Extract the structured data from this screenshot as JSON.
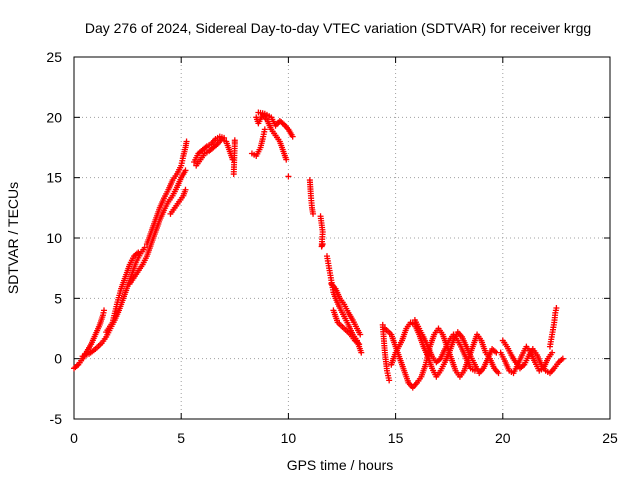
{
  "chart_data": {
    "type": "scatter",
    "title": "Day 276 of 2024, Sidereal Day-to-day VTEC variation (SDTVAR) for receiver krgg",
    "xlabel": "GPS time / hours",
    "ylabel": "SDTVAR / TECUs",
    "xlim": [
      0,
      25
    ],
    "ylim": [
      -5,
      25
    ],
    "xticks": [
      0,
      5,
      10,
      15,
      20,
      25
    ],
    "yticks": [
      -5,
      0,
      5,
      10,
      15,
      20,
      25
    ],
    "grid": true,
    "marker": "+",
    "color": "#ff0000",
    "series": [
      {
        "name": "SDTVAR",
        "segments": [
          [
            [
              0.0,
              -0.8
            ],
            [
              0.2,
              -0.5
            ],
            [
              0.4,
              0.0
            ],
            [
              0.6,
              0.6
            ],
            [
              0.8,
              1.2
            ],
            [
              1.0,
              2.0
            ],
            [
              1.2,
              2.8
            ],
            [
              1.35,
              3.6
            ],
            [
              1.4,
              4.0
            ]
          ],
          [
            [
              0.4,
              0.2
            ],
            [
              0.7,
              0.4
            ],
            [
              1.0,
              0.8
            ],
            [
              1.3,
              1.3
            ],
            [
              1.5,
              1.8
            ],
            [
              1.7,
              2.5
            ],
            [
              1.9,
              3.2
            ],
            [
              2.1,
              4.0
            ],
            [
              2.3,
              5.0
            ],
            [
              2.5,
              6.0
            ],
            [
              2.7,
              7.0
            ],
            [
              2.9,
              8.0
            ],
            [
              3.1,
              8.7
            ],
            [
              3.3,
              9.2
            ]
          ],
          [
            [
              1.5,
              2.2
            ],
            [
              1.8,
              3.0
            ],
            [
              2.0,
              4.5
            ],
            [
              2.2,
              5.8
            ],
            [
              2.4,
              6.8
            ],
            [
              2.6,
              7.8
            ],
            [
              2.8,
              8.5
            ],
            [
              3.0,
              8.8
            ]
          ],
          [
            [
              2.6,
              6.2
            ],
            [
              2.9,
              7.0
            ],
            [
              3.2,
              7.8
            ],
            [
              3.4,
              8.5
            ],
            [
              3.6,
              9.5
            ],
            [
              3.8,
              10.5
            ],
            [
              4.0,
              11.5
            ],
            [
              4.2,
              12.3
            ],
            [
              4.4,
              13.0
            ],
            [
              4.6,
              13.5
            ],
            [
              4.8,
              14.2
            ],
            [
              5.0,
              15.0
            ],
            [
              5.2,
              15.6
            ]
          ],
          [
            [
              3.4,
              9.5
            ],
            [
              3.6,
              10.5
            ],
            [
              3.8,
              11.5
            ],
            [
              4.0,
              12.5
            ],
            [
              4.2,
              13.3
            ],
            [
              4.4,
              14.0
            ],
            [
              4.6,
              14.8
            ],
            [
              4.8,
              15.3
            ],
            [
              5.0,
              16.0
            ],
            [
              5.1,
              16.8
            ],
            [
              5.2,
              17.5
            ],
            [
              5.25,
              18.0
            ]
          ],
          [
            [
              4.5,
              12.0
            ],
            [
              4.7,
              12.5
            ],
            [
              4.9,
              13.0
            ],
            [
              5.1,
              13.5
            ],
            [
              5.2,
              14.0
            ]
          ],
          [
            [
              5.7,
              16.0
            ],
            [
              5.9,
              16.5
            ],
            [
              6.1,
              17.0
            ],
            [
              6.3,
              17.2
            ],
            [
              6.5,
              17.5
            ],
            [
              6.7,
              17.8
            ],
            [
              6.9,
              18.2
            ],
            [
              7.1,
              18.0
            ],
            [
              7.3,
              17.0
            ],
            [
              7.4,
              16.5
            ]
          ],
          [
            [
              5.6,
              16.3
            ],
            [
              5.8,
              17.0
            ],
            [
              6.0,
              17.3
            ],
            [
              6.2,
              17.6
            ],
            [
              6.4,
              17.8
            ],
            [
              6.6,
              18.2
            ],
            [
              6.8,
              18.4
            ],
            [
              7.0,
              18.3
            ]
          ],
          [
            [
              7.45,
              15.3
            ],
            [
              7.5,
              17.8
            ],
            [
              7.5,
              18.1
            ]
          ],
          [
            [
              8.3,
              17.0
            ],
            [
              8.5,
              16.8
            ],
            [
              8.7,
              17.5
            ],
            [
              8.8,
              18.2
            ],
            [
              8.9,
              19.0
            ]
          ],
          [
            [
              8.5,
              20.0
            ],
            [
              8.6,
              19.5
            ],
            [
              8.8,
              20.2
            ],
            [
              9.0,
              19.8
            ],
            [
              9.2,
              19.0
            ],
            [
              9.4,
              18.5
            ],
            [
              9.6,
              18.0
            ],
            [
              9.8,
              17.0
            ],
            [
              9.9,
              16.5
            ]
          ],
          [
            [
              8.6,
              20.4
            ],
            [
              8.9,
              20.3
            ],
            [
              9.2,
              20.0
            ],
            [
              9.4,
              19.3
            ],
            [
              9.6,
              19.7
            ],
            [
              9.8,
              19.4
            ],
            [
              10.0,
              19.0
            ],
            [
              10.2,
              18.4
            ]
          ],
          [
            [
              10.0,
              15.1
            ]
          ],
          [
            [
              11.0,
              14.8
            ],
            [
              11.05,
              13.5
            ],
            [
              11.1,
              12.5
            ],
            [
              11.15,
              12.0
            ]
          ],
          [
            [
              11.5,
              11.8
            ],
            [
              11.6,
              10.5
            ],
            [
              11.55,
              9.3
            ],
            [
              11.6,
              9.5
            ]
          ],
          [
            [
              11.8,
              8.5
            ],
            [
              11.9,
              7.5
            ],
            [
              12.0,
              6.5
            ],
            [
              12.1,
              5.5
            ],
            [
              12.2,
              5.0
            ],
            [
              12.4,
              4.2
            ],
            [
              12.6,
              3.5
            ],
            [
              12.8,
              2.8
            ],
            [
              13.0,
              2.0
            ],
            [
              13.2,
              1.5
            ],
            [
              13.3,
              1.0
            ],
            [
              13.4,
              0.5
            ]
          ],
          [
            [
              12.0,
              6.2
            ],
            [
              12.2,
              5.8
            ],
            [
              12.4,
              5.0
            ],
            [
              12.6,
              4.5
            ],
            [
              12.8,
              3.8
            ],
            [
              13.0,
              3.2
            ],
            [
              13.2,
              2.5
            ],
            [
              13.35,
              2.0
            ]
          ],
          [
            [
              12.1,
              4.0
            ],
            [
              12.3,
              3.0
            ],
            [
              12.6,
              2.5
            ],
            [
              12.9,
              2.0
            ],
            [
              13.1,
              1.5
            ],
            [
              13.3,
              1.2
            ]
          ],
          [
            [
              14.4,
              2.8
            ],
            [
              14.5,
              0.5
            ],
            [
              14.6,
              -1.0
            ],
            [
              14.7,
              -1.8
            ]
          ],
          [
            [
              14.5,
              2.5
            ],
            [
              14.8,
              2.0
            ],
            [
              15.0,
              1.0
            ],
            [
              15.2,
              0.0
            ],
            [
              15.4,
              -1.0
            ],
            [
              15.6,
              -2.0
            ],
            [
              15.8,
              -2.4
            ],
            [
              16.0,
              -2.0
            ],
            [
              16.2,
              -1.5
            ],
            [
              16.4,
              -0.5
            ],
            [
              16.6,
              1.0
            ],
            [
              16.8,
              2.0
            ],
            [
              17.0,
              2.5
            ],
            [
              17.2,
              2.0
            ],
            [
              17.4,
              1.0
            ],
            [
              17.6,
              0.0
            ],
            [
              17.8,
              -1.0
            ],
            [
              18.0,
              -1.5
            ],
            [
              18.2,
              -1.0
            ],
            [
              18.4,
              0.0
            ],
            [
              18.6,
              1.0
            ],
            [
              18.8,
              2.0
            ],
            [
              19.0,
              1.5
            ],
            [
              19.2,
              0.5
            ],
            [
              19.4,
              0.0
            ],
            [
              19.6,
              -0.8
            ],
            [
              19.8,
              -1.2
            ]
          ],
          [
            [
              14.8,
              -0.5
            ],
            [
              15.0,
              0.5
            ],
            [
              15.3,
              1.5
            ],
            [
              15.5,
              2.5
            ],
            [
              15.7,
              3.0
            ],
            [
              15.9,
              2.8
            ],
            [
              16.1,
              2.0
            ],
            [
              16.3,
              1.0
            ],
            [
              16.5,
              0.2
            ],
            [
              16.7,
              -0.8
            ],
            [
              16.9,
              -1.5
            ],
            [
              17.1,
              -1.0
            ],
            [
              17.3,
              -0.3
            ],
            [
              17.5,
              0.5
            ],
            [
              17.7,
              1.5
            ],
            [
              17.9,
              2.2
            ],
            [
              18.1,
              1.8
            ],
            [
              18.3,
              1.0
            ],
            [
              18.5,
              0.2
            ],
            [
              18.7,
              -0.5
            ],
            [
              18.9,
              -1.2
            ],
            [
              19.1,
              -0.8
            ],
            [
              19.3,
              0.0
            ],
            [
              19.5,
              0.8
            ],
            [
              19.7,
              0.5
            ]
          ],
          [
            [
              15.9,
              3.2
            ],
            [
              16.1,
              2.5
            ],
            [
              16.3,
              1.8
            ],
            [
              16.5,
              1.0
            ],
            [
              16.7,
              0.2
            ],
            [
              16.9,
              -0.3
            ],
            [
              17.1,
              0.0
            ],
            [
              17.3,
              0.8
            ],
            [
              17.5,
              1.5
            ],
            [
              17.7,
              2.0
            ],
            [
              17.9,
              1.5
            ],
            [
              18.1,
              0.8
            ],
            [
              18.3,
              0.0
            ],
            [
              18.5,
              -0.8
            ],
            [
              18.7,
              -1.0
            ]
          ],
          [
            [
              19.9,
              0.5
            ],
            [
              20.1,
              -0.2
            ],
            [
              20.3,
              -1.0
            ],
            [
              20.5,
              -1.2
            ],
            [
              20.7,
              -0.5
            ],
            [
              20.9,
              0.3
            ],
            [
              21.1,
              1.0
            ],
            [
              21.3,
              0.5
            ],
            [
              21.5,
              -0.3
            ],
            [
              21.7,
              -1.0
            ],
            [
              21.9,
              -0.8
            ],
            [
              22.1,
              0.0
            ],
            [
              22.3,
              0.5
            ]
          ],
          [
            [
              20.0,
              1.5
            ],
            [
              20.2,
              1.0
            ],
            [
              20.4,
              0.3
            ],
            [
              20.6,
              -0.3
            ],
            [
              20.8,
              -0.8
            ],
            [
              21.0,
              -0.5
            ],
            [
              21.2,
              0.2
            ],
            [
              21.4,
              0.8
            ],
            [
              21.6,
              0.3
            ],
            [
              21.8,
              -0.5
            ],
            [
              22.0,
              -1.0
            ],
            [
              22.2,
              -1.2
            ],
            [
              22.4,
              -0.8
            ],
            [
              22.6,
              -0.3
            ],
            [
              22.8,
              0.0
            ]
          ],
          [
            [
              22.2,
              1.0
            ],
            [
              22.3,
              2.0
            ],
            [
              22.4,
              3.0
            ],
            [
              22.45,
              3.8
            ],
            [
              22.5,
              4.2
            ]
          ]
        ]
      }
    ]
  }
}
